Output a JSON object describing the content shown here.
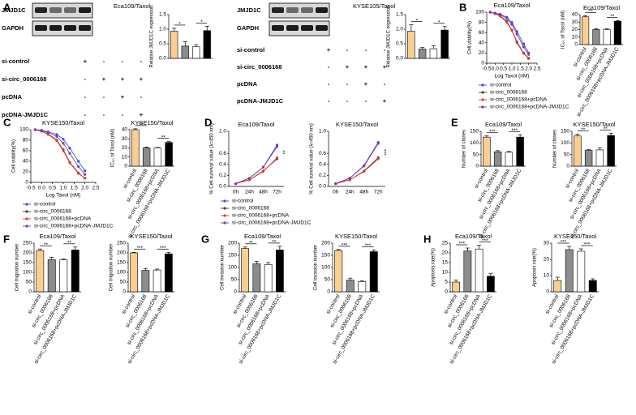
{
  "panels": [
    "A",
    "B",
    "C",
    "D",
    "E",
    "F",
    "G",
    "H"
  ],
  "blots": [
    {
      "title": "Eca109/Taxol",
      "rows": [
        "JMJD1C",
        "GAPDH"
      ]
    },
    {
      "title": "KYSE105/Taxol",
      "rows": [
        "JMJD1C",
        "GAPDH"
      ]
    }
  ],
  "designs": [
    {
      "rows": [
        {
          "label": "si-control",
          "marks": [
            "+",
            "-",
            "-",
            "-"
          ]
        },
        {
          "label": "si-circ_0006168",
          "marks": [
            "-",
            "+",
            "+",
            "+"
          ]
        },
        {
          "label": "pcDNA",
          "marks": [
            "-",
            "-",
            "+",
            "-"
          ]
        },
        {
          "label": "pcDNA-JMJD1C",
          "marks": [
            "-",
            "-",
            "-",
            "+"
          ]
        }
      ]
    },
    {
      "rows": [
        {
          "label": "si-control",
          "marks": [
            "+",
            "-",
            "-",
            "-"
          ]
        },
        {
          "label": "si-circ_0006168",
          "marks": [
            "-",
            "+",
            "+",
            "+"
          ]
        },
        {
          "label": "pcDNA",
          "marks": [
            "-",
            "-",
            "+",
            "-"
          ]
        },
        {
          "label": "pcDNA-JMJD1C",
          "marks": [
            "-",
            "-",
            "-",
            "+"
          ]
        }
      ]
    }
  ],
  "chart_data": [
    {
      "type": "bar",
      "ylabel": "Relative JMJD1C expression",
      "values": [
        0.93,
        0.42,
        0.4,
        0.95
      ],
      "errors": [
        0.1,
        0.15,
        0.07,
        0.15
      ],
      "colors": [
        "#f9cf8f",
        "#8c8c8c",
        "#ffffff",
        "#000000"
      ],
      "ylim": [
        0,
        1.5
      ],
      "yticks": [
        {
          "value": 0,
          "label": "0.0"
        },
        0.5,
        {
          "value": 1,
          "label": "1.0"
        },
        1.5
      ],
      "annotations": [
        "*",
        "*"
      ]
    },
    {
      "type": "bar",
      "ylabel": "Relative JMJD1C expression",
      "values": [
        0.93,
        0.32,
        0.33,
        0.97
      ],
      "errors": [
        0.22,
        0.05,
        0.1,
        0.12
      ],
      "colors": [
        "#f9cf8f",
        "#8c8c8c",
        "#ffffff",
        "#000000"
      ],
      "ylim": [
        0,
        1.5
      ],
      "yticks": [
        {
          "value": 0,
          "label": "0.0"
        },
        0.5,
        {
          "value": 1,
          "label": "1.0"
        },
        1.5
      ],
      "annotations": [
        "*",
        "*"
      ]
    },
    {
      "type": "line",
      "title": "Eca109/Taxol",
      "xlabel": "Log Taxol (nM)",
      "ylabel": "Cell viability(%)",
      "x": [
        -0.3,
        0,
        0.3,
        0.7,
        1.0,
        1.3,
        1.7,
        2.0
      ],
      "xlim": [
        -0.5,
        2.5
      ],
      "xticks": [
        -0.5,
        {
          "value": 0,
          "label": "0.0"
        },
        0.5,
        {
          "value": 1,
          "label": "1.0"
        },
        1.5,
        {
          "value": 2,
          "label": "2.0"
        },
        2.5
      ],
      "ylim": [
        0,
        100
      ],
      "yticks": [
        0,
        20,
        40,
        60,
        80,
        100
      ],
      "series": [
        {
          "name": "si-control",
          "color": "#3f51d6",
          "values": [
            100,
            98,
            96,
            90,
            80,
            62,
            38,
            20
          ]
        },
        {
          "name": "si-circ_0006168",
          "color": "#444444",
          "values": [
            100,
            97,
            93,
            82,
            65,
            42,
            20,
            10
          ]
        },
        {
          "name": "si-circ_0006168+pcDNA",
          "color": "#e03c31",
          "values": [
            100,
            97,
            92,
            80,
            64,
            40,
            19,
            9
          ]
        },
        {
          "name": "si-circ_0006168+pcDNA-JMJD1C",
          "color": "#7b3fa0",
          "values": [
            100,
            98,
            95,
            88,
            76,
            57,
            32,
            17
          ]
        }
      ]
    },
    {
      "type": "bar",
      "title": "Eca109/Taxol",
      "ylabel": "IC₅₀ of Taxol (nM)",
      "categories": [
        "si-control",
        "si-circ_0006168",
        "si-circ_0006168+pcDNA",
        "si-circ_0006168+pcDNA-JMJD1C"
      ],
      "values": [
        37,
        20,
        20,
        31
      ],
      "errors": [
        1.5,
        1,
        1,
        1
      ],
      "colors": [
        "#f9cf8f",
        "#8c8c8c",
        "#ffffff",
        "#000000"
      ],
      "ylim": [
        0,
        40
      ],
      "yticks": [
        0,
        10,
        20,
        30,
        40
      ],
      "annotations": [
        "**",
        "**"
      ]
    },
    {
      "type": "line",
      "title": "KYSE150/Taxol",
      "xlabel": "Log Taxol (nM)",
      "ylabel": "Cell viability(%)",
      "x": [
        -0.3,
        0,
        0.3,
        0.7,
        1.0,
        1.3,
        1.7,
        2.0
      ],
      "xlim": [
        -0.5,
        2.5
      ],
      "xticks": [
        -0.5,
        {
          "value": 0,
          "label": "0.0"
        },
        0.5,
        {
          "value": 1,
          "label": "1.0"
        },
        1.5,
        {
          "value": 2,
          "label": "2.0"
        },
        2.5
      ],
      "ylim": [
        0,
        100
      ],
      "yticks": [
        0,
        20,
        40,
        60,
        80,
        100
      ],
      "series": [
        {
          "name": "si-control",
          "color": "#3f51d6",
          "values": [
            100,
            99,
            96,
            91,
            82,
            65,
            40,
            22
          ]
        },
        {
          "name": "si-circ_0006168",
          "color": "#444444",
          "values": [
            100,
            97,
            92,
            80,
            62,
            38,
            18,
            8
          ]
        },
        {
          "name": "si-circ_0006168+pcDNA",
          "color": "#e03c31",
          "values": [
            100,
            97,
            91,
            79,
            60,
            37,
            17,
            8
          ]
        },
        {
          "name": "si-circ_0006168+pcDNA-JMJD1C",
          "color": "#7b3fa0",
          "values": [
            100,
            98,
            95,
            87,
            74,
            55,
            30,
            15
          ]
        }
      ]
    },
    {
      "type": "bar",
      "title": "KYSE150/Taxol",
      "ylabel": "IC₅₀ of Taxol (nM)",
      "categories": [
        "si-control",
        "si-circ_0006168",
        "si-circ_0006168+pcDNA",
        "si-circ_0006168+pcDNA-JMJD1C"
      ],
      "values": [
        40,
        20,
        20,
        26
      ],
      "errors": [
        1,
        1,
        0.5,
        1
      ],
      "colors": [
        "#f9cf8f",
        "#8c8c8c",
        "#ffffff",
        "#000000"
      ],
      "ylim": [
        0,
        40
      ],
      "yticks": [
        0,
        10,
        20,
        30,
        40
      ],
      "annotations": [
        "**",
        "**"
      ]
    },
    {
      "type": "line",
      "title": "Eca109/Taxol",
      "ylabel": "% Cell survival value (λ=450 nm)",
      "categories": [
        "0h",
        "24h",
        "48h",
        "72h"
      ],
      "ylim": [
        0,
        1
      ],
      "yticks": [
        {
          "value": 0,
          "label": "0.0"
        },
        0.2,
        0.4,
        0.6,
        {
          "value": 1,
          "label": "1.0"
        }
      ],
      "annotation": "**",
      "series": [
        {
          "name": "si-control",
          "color": "#3f51d6",
          "values": [
            0.05,
            0.15,
            0.35,
            0.75
          ]
        },
        {
          "name": "si-circ_0006168",
          "color": "#444444",
          "values": [
            0.05,
            0.12,
            0.28,
            0.5
          ]
        },
        {
          "name": "si-circ_0006168+pcDNA",
          "color": "#e03c31",
          "values": [
            0.05,
            0.12,
            0.27,
            0.52
          ]
        },
        {
          "name": "si-circ_0006168+pcDNA-JMJD1C",
          "color": "#7b3fa0",
          "values": [
            0.05,
            0.15,
            0.35,
            0.72
          ]
        }
      ]
    },
    {
      "type": "line",
      "title": "KYSE150/Taxol",
      "ylabel": "% Cell survival value (λ=450 nm)",
      "categories": [
        "0h",
        "24h",
        "48h",
        "72h"
      ],
      "ylim": [
        0,
        1
      ],
      "yticks": [
        {
          "value": 0,
          "label": "0.0"
        },
        0.2,
        0.4,
        0.6,
        {
          "value": 1,
          "label": "1.0"
        }
      ],
      "annotation": "***",
      "series": [
        {
          "color": "#3f51d6",
          "values": [
            0.05,
            0.15,
            0.38,
            0.8
          ]
        },
        {
          "color": "#444444",
          "values": [
            0.05,
            0.12,
            0.28,
            0.52
          ]
        },
        {
          "color": "#e03c31",
          "values": [
            0.05,
            0.12,
            0.27,
            0.5
          ]
        },
        {
          "color": "#7b3fa0",
          "values": [
            0.05,
            0.15,
            0.37,
            0.78
          ]
        }
      ]
    },
    {
      "type": "bar",
      "title": "Eca109/Taxol",
      "ylabel": "Number of clones",
      "categories": [
        "si-control",
        "si-circ_0006168",
        "si-circ_0006168+pcDNA",
        "si-circ_0006168+pcDNA-JMJD1C"
      ],
      "values": [
        125,
        62,
        60,
        125
      ],
      "errors": [
        5,
        5,
        3,
        10
      ],
      "colors": [
        "#f9cf8f",
        "#8c8c8c",
        "#ffffff",
        "#000000"
      ],
      "ylim": [
        0,
        150
      ],
      "yticks": [
        0,
        50,
        100,
        150
      ],
      "annotations": [
        "***",
        "***"
      ]
    },
    {
      "type": "bar",
      "title": "KYSE150/Taxol",
      "ylabel": "Number of clones",
      "categories": [
        "si-control",
        "si-circ_0006168",
        "si-circ_0006168+pcDNA",
        "si-circ_0006168+pcDNA-JMJD1C"
      ],
      "values": [
        130,
        68,
        70,
        132
      ],
      "errors": [
        8,
        3,
        8,
        10
      ],
      "colors": [
        "#f9cf8f",
        "#8c8c8c",
        "#ffffff",
        "#000000"
      ],
      "ylim": [
        0,
        150
      ],
      "yticks": [
        0,
        50,
        100,
        150
      ],
      "annotations": [
        "**",
        "**"
      ]
    },
    {
      "type": "bar",
      "title": "Eca109/Taxol",
      "ylabel": "Cell migration number",
      "categories": [
        "si-control",
        "si-circ_0006168",
        "si-circ_0006168+pcDNA",
        "si-circ_0006168+pcDNA-JMJD1C"
      ],
      "values": [
        212,
        165,
        165,
        215
      ],
      "errors": [
        8,
        12,
        4,
        15
      ],
      "colors": [
        "#f9cf8f",
        "#8c8c8c",
        "#ffffff",
        "#000000"
      ],
      "ylim": [
        0,
        250
      ],
      "yticks": [
        0,
        50,
        100,
        150,
        200,
        250
      ],
      "annotations": [
        "**",
        "**"
      ]
    },
    {
      "type": "bar",
      "title": "KYSE150/Taxol",
      "ylabel": "Cell migration number",
      "categories": [
        "si-control",
        "si-circ_0006168",
        "si-circ_0006168+pcDNA",
        "si-circ_0006168+pcDNA-JMJD1C"
      ],
      "values": [
        200,
        110,
        112,
        195
      ],
      "errors": [
        3,
        10,
        5,
        8
      ],
      "colors": [
        "#f9cf8f",
        "#8c8c8c",
        "#ffffff",
        "#000000"
      ],
      "ylim": [
        0,
        250
      ],
      "yticks": [
        0,
        50,
        100,
        150,
        200,
        250
      ],
      "annotations": [
        "***",
        "***"
      ]
    },
    {
      "type": "bar",
      "title": "Eca109/Taxol",
      "ylabel": "Cell invasion number",
      "categories": [
        "si-control",
        "si-circ_0006168",
        "si-circ_0006168+pcDNA",
        "si-circ_0006168+pcDNA-JMJD1C"
      ],
      "values": [
        178,
        115,
        112,
        172
      ],
      "errors": [
        6,
        10,
        8,
        15
      ],
      "colors": [
        "#f9cf8f",
        "#8c8c8c",
        "#ffffff",
        "#000000"
      ],
      "ylim": [
        0,
        200
      ],
      "yticks": [
        0,
        50,
        100,
        150,
        200
      ],
      "annotations": [
        "**",
        "**"
      ]
    },
    {
      "type": "bar",
      "title": "KYSE150/Taxol",
      "ylabel": "Cell invasion number",
      "categories": [
        "si-control",
        "si-circ_0006168",
        "si-circ_0006168+pcDNA",
        "si-circ_0006168+pcDNA-JMJD1C"
      ],
      "values": [
        170,
        48,
        42,
        165
      ],
      "errors": [
        4,
        8,
        3,
        7
      ],
      "colors": [
        "#f9cf8f",
        "#8c8c8c",
        "#ffffff",
        "#000000"
      ],
      "ylim": [
        0,
        200
      ],
      "yticks": [
        0,
        50,
        100,
        150,
        200
      ],
      "annotations": [
        "***",
        "***"
      ]
    },
    {
      "type": "bar",
      "title": "Eca109/Taxol",
      "ylabel": "Apoptosis rate(%)",
      "categories": [
        "si-control",
        "si-circ_0006168",
        "si-circ_0006168+pcDNA",
        "si-circ_0006168+pcDNA-JMJD1C"
      ],
      "values": [
        5,
        21,
        22,
        8
      ],
      "errors": [
        1,
        1.5,
        2,
        1.5
      ],
      "colors": [
        "#f9cf8f",
        "#8c8c8c",
        "#ffffff",
        "#000000"
      ],
      "ylim": [
        0,
        25
      ],
      "yticks": [
        0,
        5,
        10,
        15,
        20,
        25
      ],
      "annotations": [
        "***",
        "***"
      ]
    },
    {
      "type": "bar",
      "title": "KYSE150/Taxol",
      "ylabel": "Apoptosis rate(%)",
      "categories": [
        "si-control",
        "si-circ_0006168",
        "si-circ_0006168+pcDNA",
        "si-circ_0006168+pcDNA-JMJD1C"
      ],
      "values": [
        7,
        26,
        25,
        7
      ],
      "errors": [
        2,
        2,
        1.5,
        1
      ],
      "colors": [
        "#f9cf8f",
        "#8c8c8c",
        "#ffffff",
        "#000000"
      ],
      "ylim": [
        0,
        30
      ],
      "yticks": [
        0,
        10,
        20,
        30
      ],
      "annotations": [
        "***",
        "***"
      ]
    }
  ]
}
